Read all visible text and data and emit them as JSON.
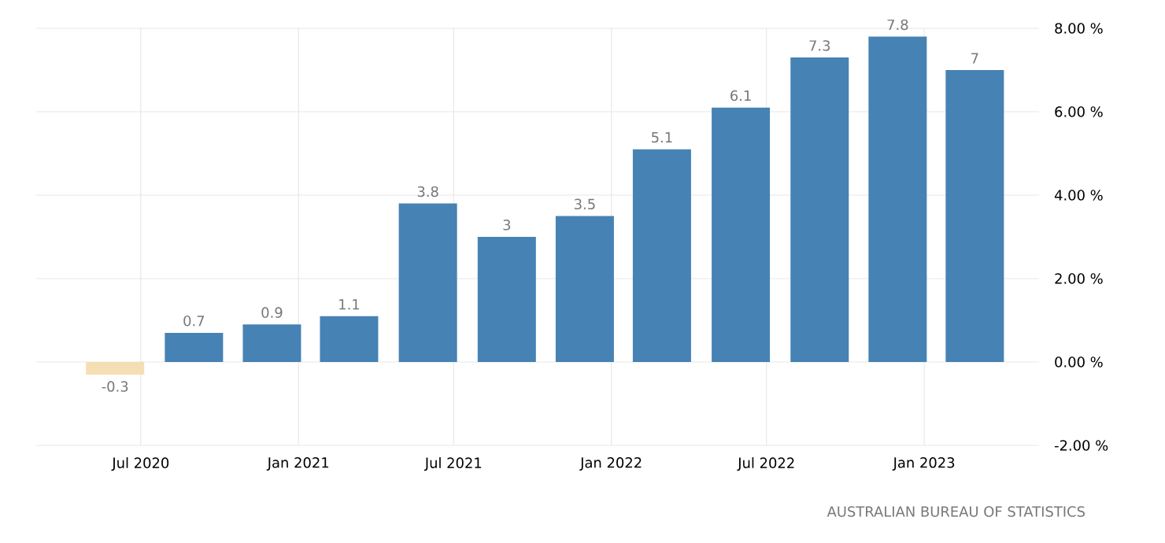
{
  "chart_data": {
    "type": "bar",
    "x": [
      "2020-06",
      "2020-09",
      "2020-12",
      "2021-03",
      "2021-06",
      "2021-09",
      "2021-12",
      "2022-03",
      "2022-06",
      "2022-09",
      "2022-12",
      "2023-03"
    ],
    "values": [
      -0.3,
      0.7,
      0.9,
      1.1,
      3.8,
      3,
      3.5,
      5.1,
      6.1,
      7.3,
      7.8,
      7
    ],
    "colors": [
      "#f5deb3",
      "#4682b4",
      "#4682b4",
      "#4682b4",
      "#4682b4",
      "#4682b4",
      "#4682b4",
      "#4682b4",
      "#4682b4",
      "#4682b4",
      "#4682b4",
      "#4682b4"
    ],
    "data_labels": true,
    "xlim": [
      "2020-03",
      "2023-05-15"
    ],
    "xticks": [
      {
        "value": "2020-07",
        "label": "Jul 2020"
      },
      {
        "value": "2021-01",
        "label": "Jan 2021"
      },
      {
        "value": "2021-07",
        "label": "Jul 2021"
      },
      {
        "value": "2022-01",
        "label": "Jan 2022"
      },
      {
        "value": "2022-07",
        "label": "Jul 2022"
      },
      {
        "value": "2023-01",
        "label": "Jan 2023"
      }
    ],
    "ylim": [
      -2,
      8
    ],
    "yticks": [
      {
        "value": 8,
        "label": "8.00 %"
      },
      {
        "value": 6,
        "label": "6.00 %"
      },
      {
        "value": 4,
        "label": "4.00 %"
      },
      {
        "value": 2,
        "label": "2.00 %"
      },
      {
        "value": 0,
        "label": "0.00 %"
      },
      {
        "value": -2,
        "label": "-2.00 %"
      }
    ],
    "grid": true,
    "annotations": [
      "AUSTRALIAN BUREAU OF STATISTICS"
    ]
  }
}
